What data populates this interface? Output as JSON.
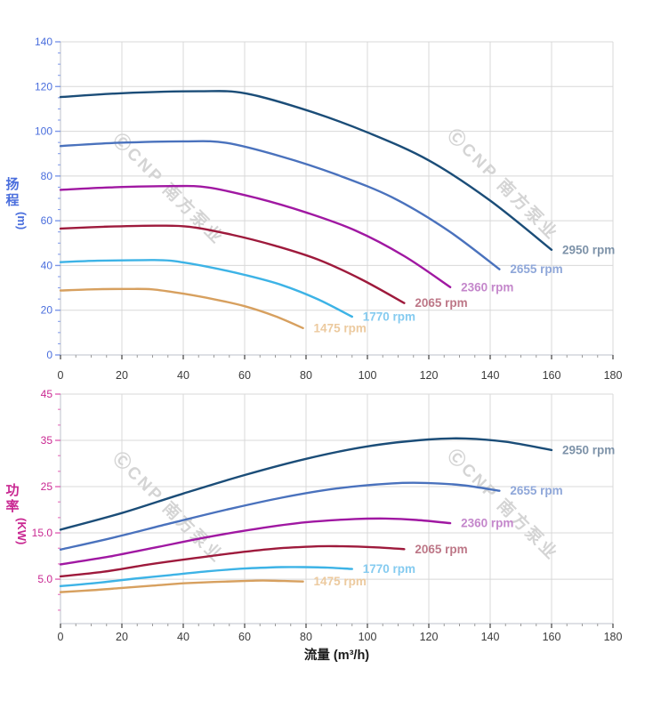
{
  "page": {
    "background": "#ffffff"
  },
  "watermark": {
    "text": "ⒸCNP 南方泵业",
    "color": "#d4d4d4"
  },
  "chart_data": [
    {
      "type": "line",
      "title": "",
      "xlabel": "",
      "ylabel": "扬程",
      "ylabel_unit": "(m)",
      "xlim": [
        0,
        180
      ],
      "ylim": [
        0,
        140
      ],
      "grid": true,
      "legend_position": "curve-end-labels",
      "x_tick_values": [
        0,
        20,
        40,
        60,
        80,
        100,
        120,
        140,
        160,
        180
      ],
      "x_tick_labels": [
        "0",
        "20",
        "40",
        "60",
        "80",
        "100",
        "120",
        "140",
        "160",
        "180"
      ],
      "x_minor_step": 5,
      "y_tick_values": [
        140,
        120,
        100,
        80,
        60,
        40,
        20,
        0
      ],
      "y_tick_labels": [
        "140",
        "120",
        "100",
        "80",
        "60",
        "40",
        "20",
        "0"
      ],
      "y_minor_values": [
        135,
        130,
        125,
        115,
        110,
        105,
        95,
        90,
        85,
        75,
        70,
        65,
        55,
        50,
        45,
        35,
        30,
        25,
        15,
        10,
        5
      ],
      "axis_text_color": "#4a6edd",
      "axis_tick_color": "#7d97e8",
      "x_text_color": "#3b3b3b",
      "grid_color": "#d8d8d8",
      "spine_color": "#bcc1cb",
      "series": [
        {
          "name": "2950 rpm",
          "color": "#1b4d78",
          "label_color": "#7e93a9",
          "points": [
            [
              0,
              115.3
            ],
            [
              20,
              117.0
            ],
            [
              45,
              117.9
            ],
            [
              60,
              117.0
            ],
            [
              80,
              109.5
            ],
            [
              100,
              99.5
            ],
            [
              120,
              87.0
            ],
            [
              140,
              69.0
            ],
            [
              160,
              47.0
            ]
          ]
        },
        {
          "name": "2655 rpm",
          "color": "#4a72bd",
          "label_color": "#8fa7d9",
          "points": [
            [
              0,
              93.4
            ],
            [
              18,
              94.8
            ],
            [
              40,
              95.5
            ],
            [
              54,
              94.8
            ],
            [
              72,
              88.7
            ],
            [
              90,
              80.6
            ],
            [
              108,
              70.5
            ],
            [
              126,
              55.9
            ],
            [
              143,
              38.3
            ]
          ]
        },
        {
          "name": "2360 rpm",
          "color": "#a018a2",
          "label_color": "#c487cb",
          "points": [
            [
              0,
              73.8
            ],
            [
              16,
              74.9
            ],
            [
              36,
              75.5
            ],
            [
              48,
              74.9
            ],
            [
              64,
              70.1
            ],
            [
              80,
              63.7
            ],
            [
              96,
              55.7
            ],
            [
              112,
              44.2
            ],
            [
              127,
              30.3
            ]
          ]
        },
        {
          "name": "2065 rpm",
          "color": "#9e1a3c",
          "label_color": "#bd7787",
          "points": [
            [
              0,
              56.5
            ],
            [
              14,
              57.3
            ],
            [
              31,
              57.8
            ],
            [
              42,
              57.3
            ],
            [
              56,
              53.7
            ],
            [
              70,
              48.8
            ],
            [
              84,
              42.6
            ],
            [
              98,
              33.8
            ],
            [
              112,
              23.2
            ]
          ]
        },
        {
          "name": "1770 rpm",
          "color": "#3db3e6",
          "label_color": "#85cbf0",
          "points": [
            [
              0,
              41.5
            ],
            [
              12,
              42.1
            ],
            [
              27,
              42.4
            ],
            [
              36,
              42.1
            ],
            [
              48,
              39.4
            ],
            [
              60,
              35.8
            ],
            [
              72,
              31.3
            ],
            [
              84,
              24.8
            ],
            [
              95,
              17.1
            ]
          ]
        },
        {
          "name": "1475 rpm",
          "color": "#d7a05f",
          "label_color": "#ecca9f",
          "points": [
            [
              0,
              28.8
            ],
            [
              10,
              29.3
            ],
            [
              22,
              29.5
            ],
            [
              30,
              29.3
            ],
            [
              40,
              27.4
            ],
            [
              50,
              24.9
            ],
            [
              60,
              21.8
            ],
            [
              70,
              17.3
            ],
            [
              79,
              12.0
            ]
          ]
        }
      ]
    },
    {
      "type": "line",
      "title": "",
      "xlabel": "流量 (m³/h)",
      "ylabel": "功率",
      "ylabel_unit": "(KW)",
      "xlim": [
        0,
        180
      ],
      "ylim": [
        -4.6,
        45
      ],
      "grid": true,
      "legend_position": "curve-end-labels",
      "x_tick_values": [
        0,
        20,
        40,
        60,
        80,
        100,
        120,
        140,
        160,
        180
      ],
      "x_tick_labels": [
        "0",
        "20",
        "40",
        "60",
        "80",
        "100",
        "120",
        "140",
        "160",
        "180"
      ],
      "x_minor_step": 5,
      "y_tick_values": [
        45,
        35,
        25,
        15,
        5
      ],
      "y_tick_labels": [
        "45",
        "35",
        "25",
        "15.0",
        "5.0"
      ],
      "y_minor_values": [
        41.7,
        38.3,
        31.7,
        28.3,
        21.7,
        18.3,
        11.7,
        8.3,
        1.7,
        -1.7
      ],
      "axis_text_color": "#c92892",
      "axis_tick_color": "#e263b5",
      "x_text_color": "#3b3b3b",
      "grid_color": "#d8d8d8",
      "spine_color": "#bcc1cb",
      "series": [
        {
          "name": "2950 rpm",
          "color": "#1b4d78",
          "label_color": "#7e93a9",
          "points": [
            [
              0,
              15.7
            ],
            [
              20,
              19.3
            ],
            [
              40,
              23.5
            ],
            [
              60,
              27.5
            ],
            [
              80,
              31.0
            ],
            [
              100,
              33.7
            ],
            [
              120,
              35.2
            ],
            [
              132,
              35.4
            ],
            [
              145,
              34.7
            ],
            [
              160,
              32.9
            ]
          ]
        },
        {
          "name": "2655 rpm",
          "color": "#4a72bd",
          "label_color": "#8fa7d9",
          "points": [
            [
              0,
              11.4
            ],
            [
              18,
              14.1
            ],
            [
              36,
              17.1
            ],
            [
              54,
              20.0
            ],
            [
              72,
              22.6
            ],
            [
              90,
              24.6
            ],
            [
              108,
              25.7
            ],
            [
              119,
              25.8
            ],
            [
              131,
              25.3
            ],
            [
              143,
              24.1
            ]
          ]
        },
        {
          "name": "2360 rpm",
          "color": "#a018a2",
          "label_color": "#c487cb",
          "points": [
            [
              0,
              8.2
            ],
            [
              16,
              9.9
            ],
            [
              32,
              12.0
            ],
            [
              48,
              14.1
            ],
            [
              64,
              15.9
            ],
            [
              80,
              17.3
            ],
            [
              96,
              18.0
            ],
            [
              106,
              18.1
            ],
            [
              116,
              17.8
            ],
            [
              127,
              17.1
            ]
          ]
        },
        {
          "name": "2065 rpm",
          "color": "#9e1a3c",
          "label_color": "#bd7787",
          "points": [
            [
              0,
              5.6
            ],
            [
              14,
              6.6
            ],
            [
              28,
              8.1
            ],
            [
              42,
              9.4
            ],
            [
              56,
              10.6
            ],
            [
              70,
              11.6
            ],
            [
              84,
              12.1
            ],
            [
              92,
              12.1
            ],
            [
              102,
              11.9
            ],
            [
              112,
              11.5
            ]
          ]
        },
        {
          "name": "1770 rpm",
          "color": "#3db3e6",
          "label_color": "#85cbf0",
          "points": [
            [
              0,
              3.5
            ],
            [
              12,
              4.2
            ],
            [
              24,
              5.1
            ],
            [
              36,
              5.9
            ],
            [
              48,
              6.7
            ],
            [
              60,
              7.3
            ],
            [
              72,
              7.6
            ],
            [
              79,
              7.6
            ],
            [
              87,
              7.5
            ],
            [
              95,
              7.2
            ]
          ]
        },
        {
          "name": "1475 rpm",
          "color": "#d7a05f",
          "label_color": "#ecca9f",
          "points": [
            [
              0,
              2.2
            ],
            [
              10,
              2.6
            ],
            [
              20,
              3.1
            ],
            [
              30,
              3.6
            ],
            [
              40,
              4.1
            ],
            [
              50,
              4.4
            ],
            [
              60,
              4.6
            ],
            [
              66,
              4.7
            ],
            [
              73,
              4.6
            ],
            [
              79,
              4.5
            ]
          ]
        }
      ]
    }
  ]
}
